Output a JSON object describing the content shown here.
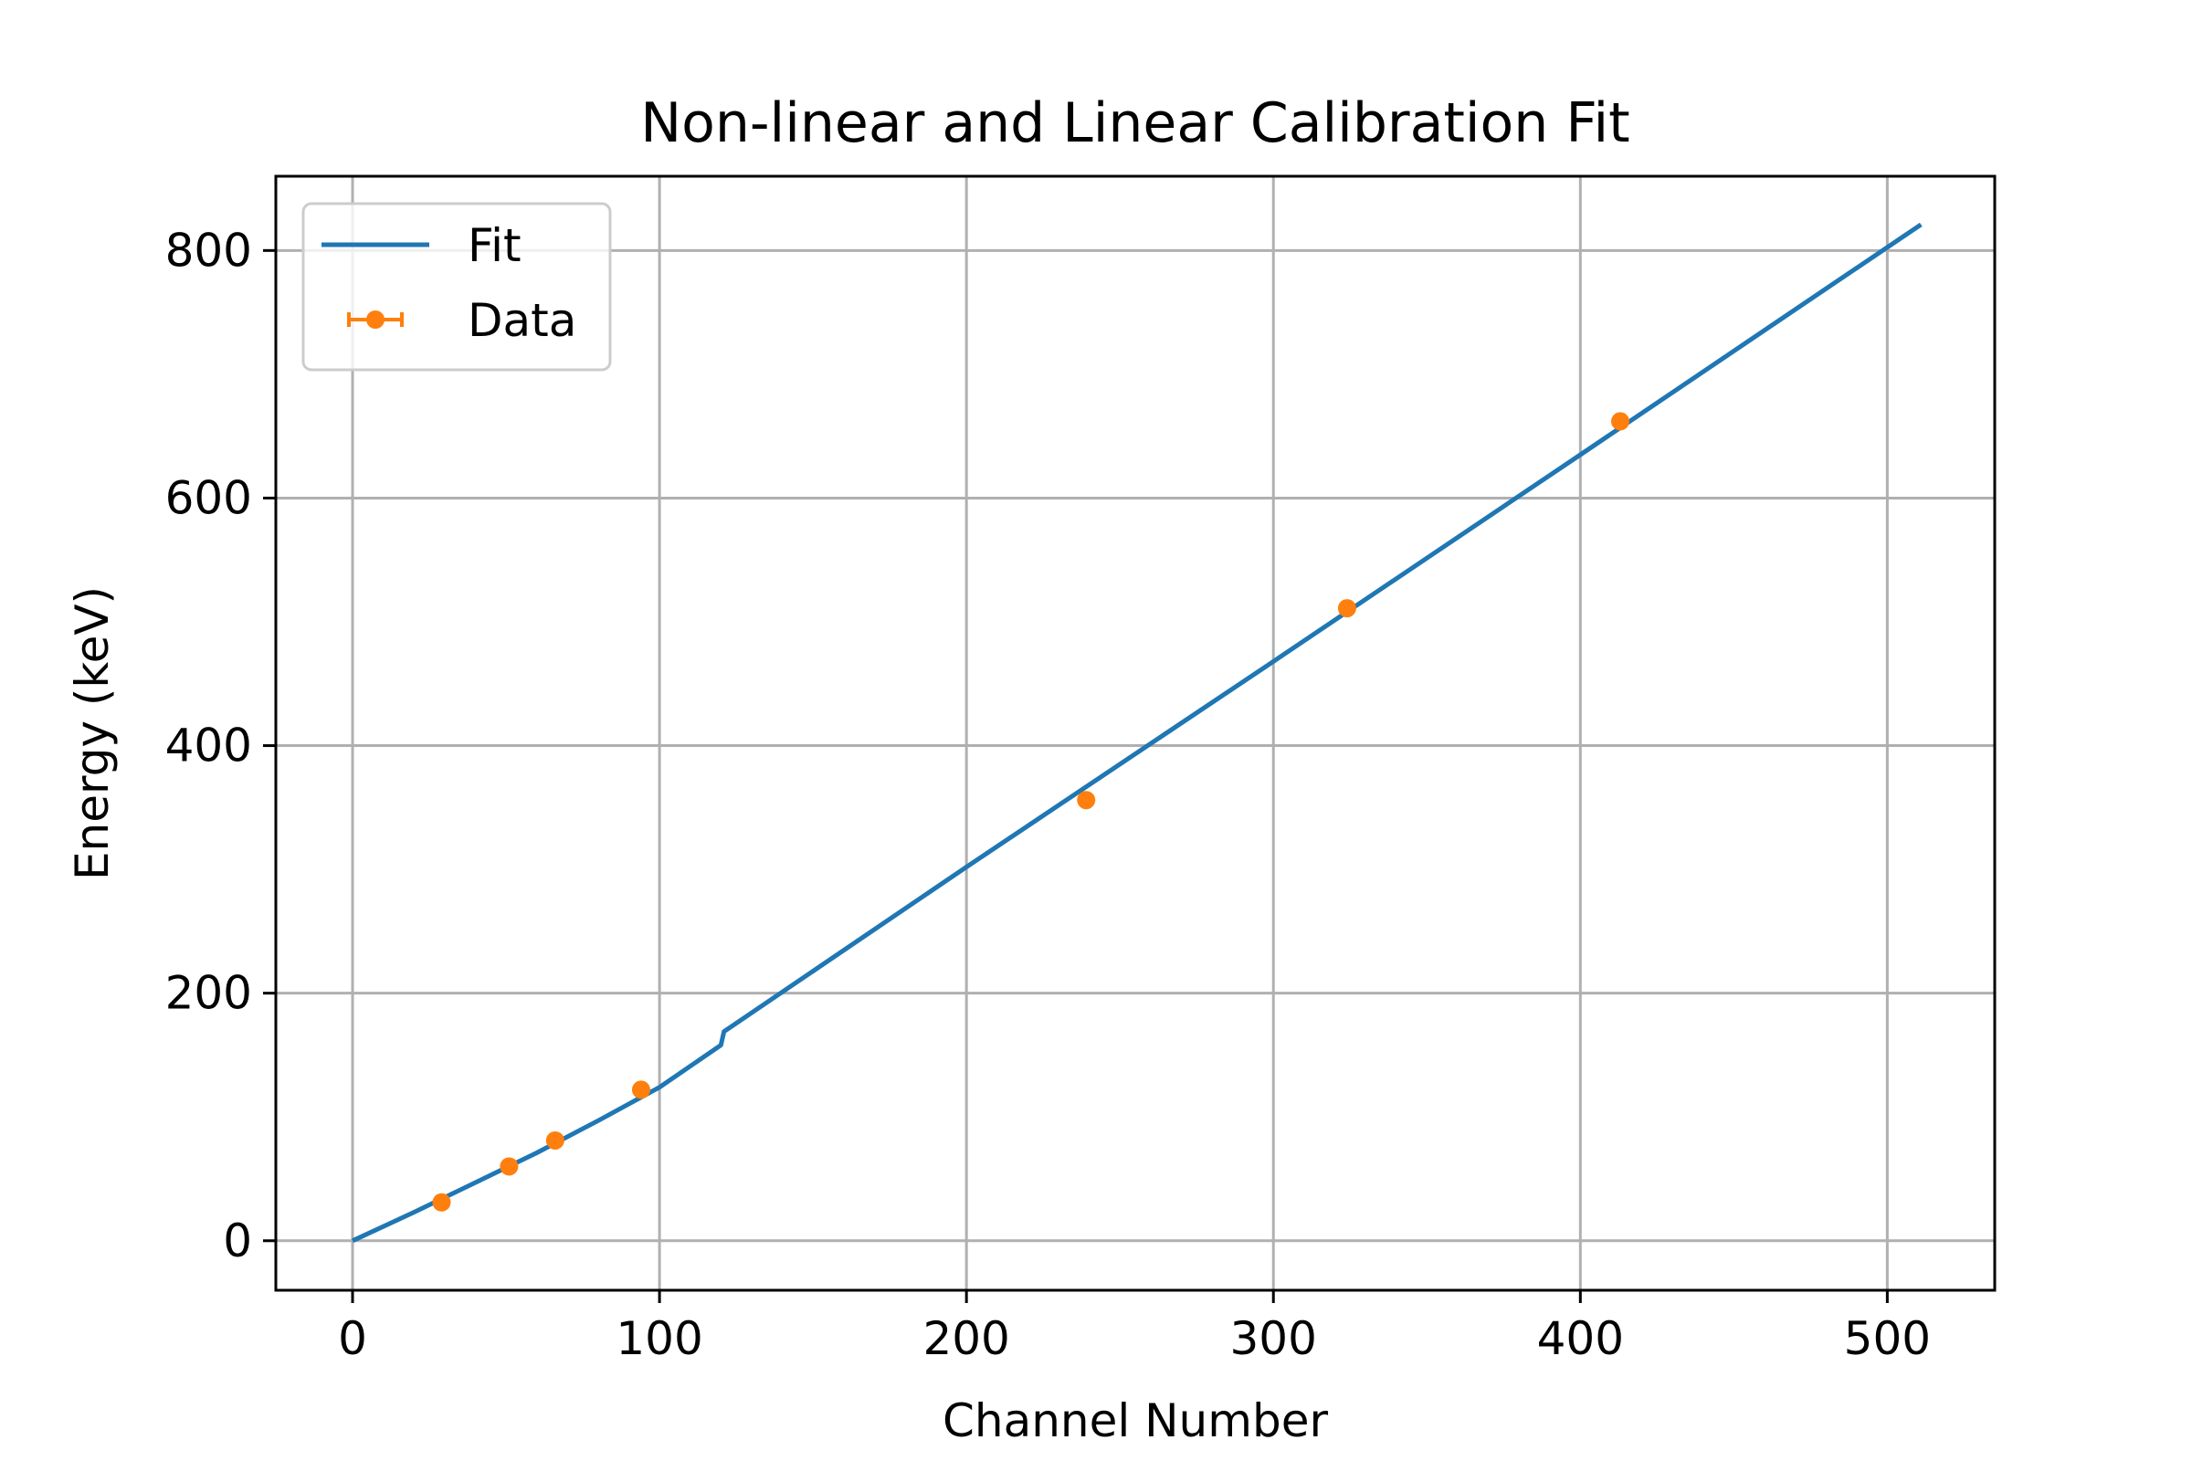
{
  "chart_data": {
    "type": "line",
    "title": "Non-linear and Linear Calibration Fit",
    "xlabel": "Channel Number",
    "ylabel": "Energy (keV)",
    "xlim": [
      -25,
      535
    ],
    "ylim": [
      -40,
      860
    ],
    "xticks": [
      0,
      100,
      200,
      300,
      400,
      500
    ],
    "yticks": [
      0,
      200,
      400,
      600,
      800
    ],
    "grid": true,
    "legend_position": "upper-left",
    "series": [
      {
        "name": "Fit",
        "kind": "line",
        "color": "#1f77b4",
        "x": [
          0,
          20,
          40,
          60,
          80,
          100,
          120,
          121,
          200,
          300,
          400,
          511
        ],
        "y": [
          0,
          23,
          47,
          71,
          97,
          124,
          158,
          169,
          302,
          468,
          635,
          821
        ]
      },
      {
        "name": "Data",
        "kind": "errorbar",
        "color": "#ff7f0e",
        "x": [
          29,
          51,
          66,
          94,
          239,
          324,
          413
        ],
        "y": [
          31,
          60,
          81,
          122,
          356,
          511,
          662
        ]
      }
    ]
  }
}
